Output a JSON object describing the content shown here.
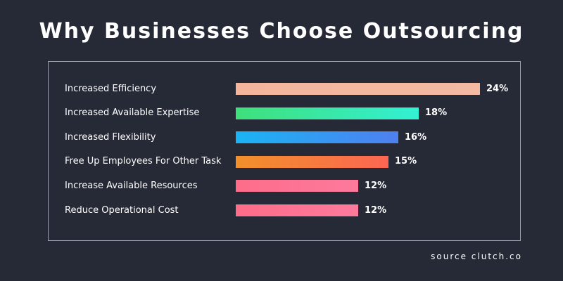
{
  "chart_data": {
    "type": "bar",
    "orientation": "horizontal",
    "title": "Why Businesses Choose Outsourcing",
    "categories": [
      "Increased Efficiency",
      "Increased Available Expertise",
      "Increased Flexibility",
      "Free Up Employees For Other Task",
      "Increase Available Resources",
      "Reduce Operational Cost"
    ],
    "values": [
      24,
      18,
      16,
      15,
      12,
      12
    ],
    "value_labels": [
      "24%",
      "18%",
      "16%",
      "15%",
      "12%",
      "12%"
    ],
    "colors": [
      [
        "#f5b59c",
        "#f3b9a3"
      ],
      [
        "#3fe07a",
        "#33f0d4"
      ],
      [
        "#1ab4f4",
        "#4f7ff0"
      ],
      [
        "#f2902a",
        "#fb6653"
      ],
      [
        "#fd6d8a",
        "#fd7a9c"
      ],
      [
        "#fd6d8a",
        "#fd7a9c"
      ]
    ],
    "xlim": [
      0,
      24
    ],
    "grid": false,
    "legend": "none"
  },
  "footer": {
    "source": "source clutch.co"
  }
}
